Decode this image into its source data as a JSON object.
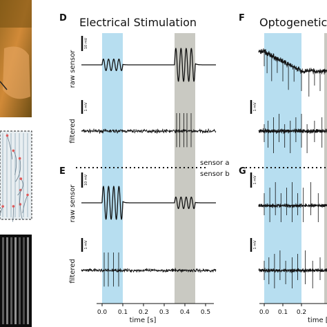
{
  "titles": {
    "electrical": "Electrical Stimulation",
    "optogenetic": "Optogenetic"
  },
  "panel_labels": {
    "d": "D",
    "e": "E",
    "f": "F",
    "g": "G"
  },
  "sensors": {
    "a": "sensor a",
    "b": "sensor b"
  },
  "row_labels": {
    "raw": "raw sensor",
    "filtered": "filtered"
  },
  "scale_labels": {
    "raw": "10 mV",
    "filtered": "1 mV"
  },
  "colors": {
    "stim_blue": "#b7def0",
    "stim_gray": "#c9c9c2",
    "trace": "#111111",
    "photo_orange": "#c8822e",
    "photo_dark": "#5a4310"
  },
  "chart_data": [
    {
      "type": "line",
      "panel": "D",
      "title": "Electrical Stimulation",
      "subtitle": "sensor a",
      "xlabel": "time [s]",
      "xticks": [
        "0.0",
        "0.1",
        "0.2",
        "0.3",
        "0.4",
        "0.5"
      ],
      "xlim": [
        -0.1,
        0.55
      ],
      "shaded_intervals": [
        {
          "from": 0.0,
          "to": 0.1,
          "color": "blue"
        },
        {
          "from": 0.35,
          "to": 0.45,
          "color": "gray"
        }
      ],
      "series": [
        {
          "name": "raw sensor",
          "scale": "10 mV",
          "bursts": [
            {
              "from": 0.0,
              "to": 0.1,
              "cycles": 4,
              "amplitude": 0.35
            },
            {
              "from": 0.35,
              "to": 0.45,
              "cycles": 4,
              "amplitude": 1.0
            }
          ]
        },
        {
          "name": "filtered",
          "scale": "1 mV",
          "spikes": [
            0.36,
            0.375,
            0.395,
            0.41,
            0.43
          ]
        }
      ]
    },
    {
      "type": "line",
      "panel": "E",
      "subtitle": "sensor b",
      "xlabel": "time [s]",
      "xticks": [
        "0.0",
        "0.1",
        "0.2",
        "0.3",
        "0.4",
        "0.5"
      ],
      "xlim": [
        -0.1,
        0.55
      ],
      "shaded_intervals": [
        {
          "from": 0.0,
          "to": 0.1,
          "color": "blue"
        },
        {
          "from": 0.35,
          "to": 0.45,
          "color": "gray"
        }
      ],
      "series": [
        {
          "name": "raw sensor",
          "scale": "10 mV",
          "bursts": [
            {
              "from": 0.0,
              "to": 0.1,
              "cycles": 4,
              "amplitude": 1.0
            },
            {
              "from": 0.35,
              "to": 0.45,
              "cycles": 4,
              "amplitude": 0.35
            }
          ]
        },
        {
          "name": "filtered",
          "scale": "1 mV",
          "spikes": [
            0.01,
            0.03,
            0.055,
            0.08
          ]
        }
      ]
    },
    {
      "type": "line",
      "panel": "F",
      "title": "Optogenetic",
      "subtitle": "sensor a",
      "xlabel": "time [",
      "xticks": [
        "0.0",
        "0.1",
        "0.2"
      ],
      "shaded_intervals": [
        {
          "from": 0.0,
          "to": 0.2,
          "color": "blue"
        }
      ],
      "series": [
        {
          "name": "raw sensor",
          "description": "decaying noisy trace with spikes"
        },
        {
          "name": "filtered",
          "scale": "1 mV"
        }
      ]
    },
    {
      "type": "line",
      "panel": "G",
      "subtitle": "sensor b",
      "xlabel": "time [",
      "xticks": [
        "0.0",
        "0.1",
        "0.2"
      ],
      "shaded_intervals": [
        {
          "from": 0.0,
          "to": 0.2,
          "color": "blue"
        }
      ],
      "series": [
        {
          "name": "raw sensor",
          "scale": "1 mV"
        },
        {
          "name": "filtered",
          "scale": "1 mV"
        }
      ]
    }
  ]
}
